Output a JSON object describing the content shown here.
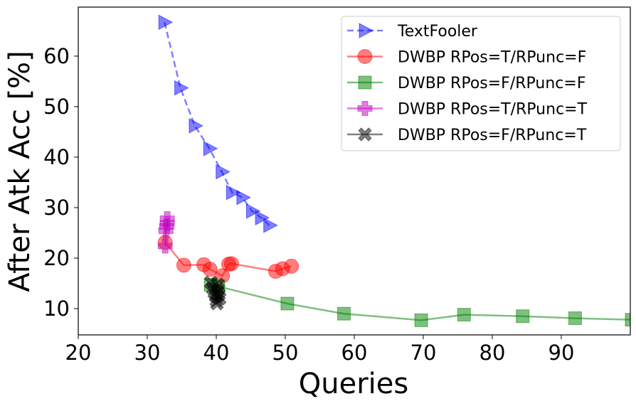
{
  "chart_data": {
    "type": "scatter",
    "title": "",
    "xlabel": "Queries",
    "ylabel": "After Atk Acc [%]",
    "xlim": [
      20,
      100
    ],
    "ylim": [
      4.8,
      69.7
    ],
    "xticks": [
      20,
      30,
      40,
      50,
      60,
      70,
      80,
      90
    ],
    "xtick_labels": [
      "20",
      "30",
      "40",
      "50",
      "60",
      "70",
      "80",
      "90"
    ],
    "yticks": [
      10,
      20,
      30,
      40,
      50,
      60
    ],
    "ytick_labels": [
      "10",
      "20",
      "30",
      "40",
      "50",
      "60"
    ],
    "grid": false,
    "legend_position": "top-right",
    "series": [
      {
        "name": "TextFooler",
        "color": "#0000ff",
        "marker": "triangle-right",
        "line": "dashed",
        "points": [
          [
            32.5,
            66.7
          ],
          [
            34.8,
            53.7
          ],
          [
            36.9,
            46.2
          ],
          [
            39.0,
            41.7
          ],
          [
            40.8,
            37.1
          ],
          [
            42.3,
            33.0
          ],
          [
            43.8,
            32.0
          ],
          [
            45.2,
            29.3
          ],
          [
            46.5,
            28.0
          ],
          [
            47.7,
            26.5
          ]
        ]
      },
      {
        "name": "DWBP RPos=T/RPunc=F",
        "color": "#ff0000",
        "marker": "circle",
        "line": "solid",
        "points": [
          [
            32.6,
            23.1
          ],
          [
            35.3,
            18.6
          ],
          [
            38.2,
            18.7
          ],
          [
            39.1,
            17.8
          ],
          [
            40.9,
            16.5
          ],
          [
            41.8,
            18.8
          ],
          [
            42.2,
            18.9
          ],
          [
            48.6,
            17.4
          ],
          [
            49.6,
            17.9
          ],
          [
            50.9,
            18.4
          ]
        ]
      },
      {
        "name": "DWBP RPos=F/RPunc=F",
        "color": "#008000",
        "marker": "square",
        "line": "solid",
        "points": [
          [
            39.2,
            14.7
          ],
          [
            40.3,
            14.4
          ],
          [
            50.3,
            11.0
          ],
          [
            58.5,
            9.0
          ],
          [
            69.7,
            7.7
          ],
          [
            75.9,
            8.8
          ],
          [
            84.4,
            8.5
          ],
          [
            92.0,
            8.1
          ],
          [
            100.2,
            7.8
          ]
        ]
      },
      {
        "name": "DWBP RPos=T/RPunc=T",
        "color": "#c000c0",
        "marker": "plus",
        "line": "solid",
        "points": [
          [
            32.6,
            22.4
          ],
          [
            32.7,
            25.4
          ],
          [
            32.8,
            26.3
          ],
          [
            32.9,
            26.9
          ],
          [
            32.9,
            27.8
          ]
        ]
      },
      {
        "name": "DWBP RPos=F/RPunc=T",
        "color": "#000000",
        "marker": "x",
        "line": "solid",
        "points": [
          [
            39.2,
            15.2
          ],
          [
            39.5,
            14.0
          ],
          [
            39.7,
            13.2
          ],
          [
            39.9,
            12.5
          ],
          [
            40.0,
            11.6
          ],
          [
            40.1,
            11.0
          ],
          [
            40.2,
            14.8
          ],
          [
            40.3,
            13.8
          ],
          [
            40.4,
            12.8
          ],
          [
            40.5,
            12.0
          ]
        ]
      }
    ]
  }
}
